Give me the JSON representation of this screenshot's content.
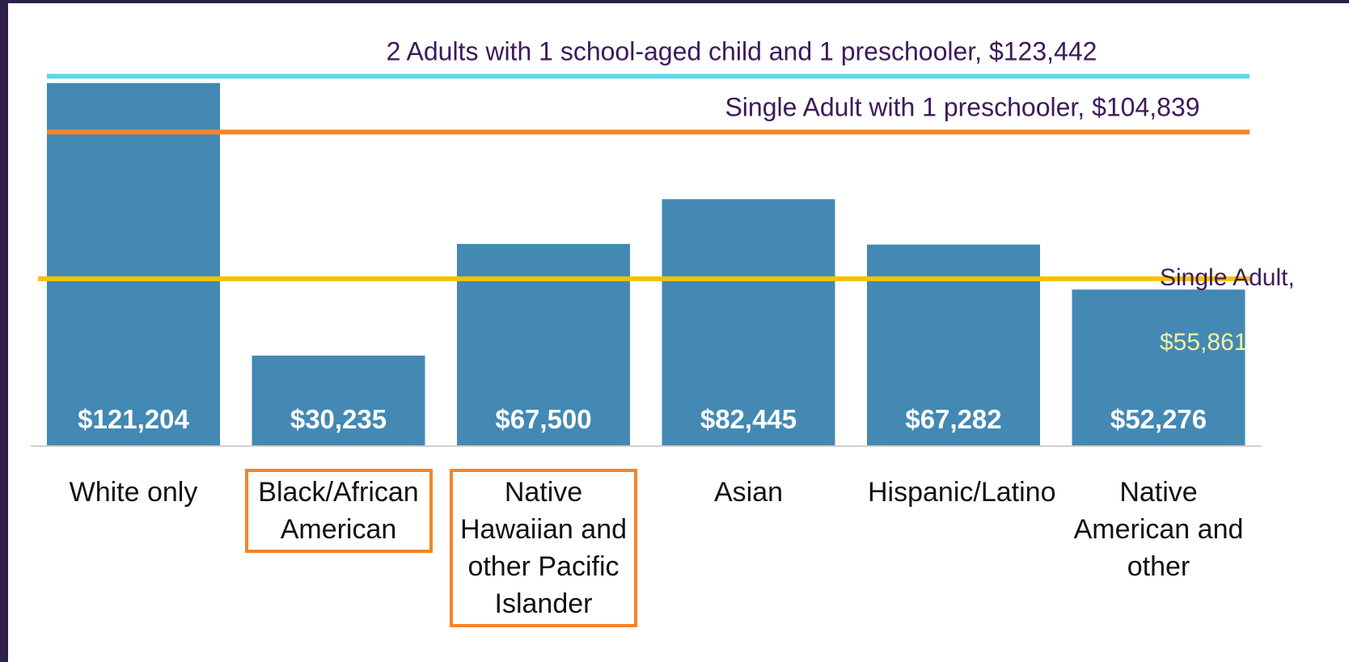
{
  "chart_data": {
    "type": "bar",
    "categories": [
      "White only",
      "Black/African American",
      "Native Hawaiian and other Pacific Islander",
      "Asian",
      "Hispanic/Latino",
      "Native American and other"
    ],
    "values": [
      121204,
      30235,
      67500,
      82445,
      67282,
      52276
    ],
    "value_labels": [
      "$121,204",
      "$30,235",
      "$67,500",
      "$82,445",
      "$67,282",
      "$52,276"
    ],
    "color": "#4389b4",
    "ylim": [
      0,
      133000
    ],
    "highlighted": [
      1,
      2
    ],
    "highlight_color": "#f58426",
    "reference_lines": [
      {
        "label": "2 Adults with 1 school-aged child and 1 preschooler,",
        "value": 123442,
        "value_label": "$123,442",
        "color": "#5fd6ef"
      },
      {
        "label": "Single Adult with 1 preschooler,",
        "value": 104839,
        "value_label": "$104,839",
        "color": "#f58426"
      },
      {
        "label": "Single Adult,",
        "value": 55861,
        "value_label": "$55,861",
        "color": "#f5c200"
      }
    ]
  }
}
